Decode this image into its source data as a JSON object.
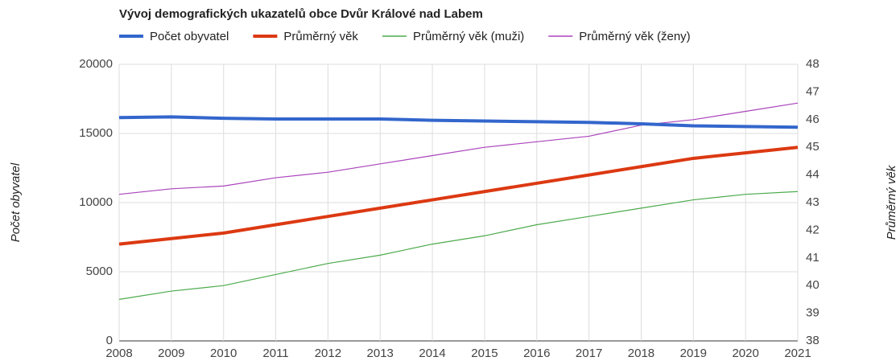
{
  "chart_data": {
    "type": "line",
    "title": "Vývoj demografických ukazatelů obce Dvůr Králové nad Labem",
    "x": [
      2008,
      2009,
      2010,
      2011,
      2012,
      2013,
      2014,
      2015,
      2016,
      2017,
      2018,
      2019,
      2020,
      2021
    ],
    "xlim": [
      2008,
      2021
    ],
    "xticks": [
      2008,
      2009,
      2010,
      2011,
      2012,
      2013,
      2014,
      2015,
      2016,
      2017,
      2018,
      2019,
      2020,
      2021
    ],
    "ylabel": "Počet obyvatel",
    "y2label": "Průměrný věk",
    "ylim": [
      0,
      20000
    ],
    "yticks": [
      0,
      5000,
      10000,
      15000,
      20000
    ],
    "y2lim": [
      38,
      48
    ],
    "y2ticks": [
      38,
      39,
      40,
      41,
      42,
      43,
      44,
      45,
      46,
      47,
      48
    ],
    "grid": true,
    "legend": "top",
    "series": [
      {
        "name": "Počet obyvatel",
        "color": "#3366cc",
        "values": [
          16150,
          16200,
          16100,
          16050,
          16050,
          16050,
          15950,
          15900,
          15850,
          15800,
          15700,
          15550,
          15500,
          15450
        ]
      },
      {
        "name": "Průměrný věk",
        "color": "#dc3912",
        "axis": "y2",
        "values": [
          41.5,
          41.7,
          41.9,
          42.2,
          42.5,
          42.8,
          43.1,
          43.4,
          43.7,
          44.0,
          44.3,
          44.6,
          44.8,
          45.0
        ]
      },
      {
        "name": "Průměrný věk (muži)",
        "color": "#4caa4c",
        "axis": "y2",
        "values": [
          39.5,
          39.8,
          40.0,
          40.4,
          40.8,
          41.1,
          41.5,
          41.8,
          42.2,
          42.5,
          42.8,
          43.1,
          43.3,
          43.4
        ]
      },
      {
        "name": "Průměrný věk (ženy)",
        "color": "#aa44bb",
        "axis": "y2",
        "values": [
          43.3,
          43.5,
          43.6,
          43.9,
          44.1,
          44.4,
          44.7,
          45.0,
          45.2,
          45.4,
          45.8,
          46.0,
          46.3,
          46.6
        ]
      }
    ]
  }
}
